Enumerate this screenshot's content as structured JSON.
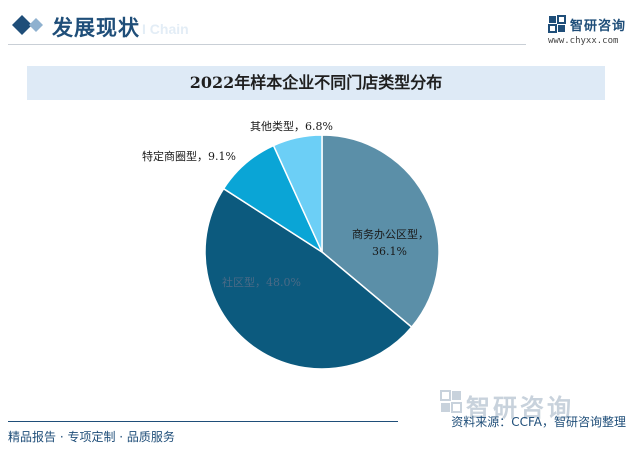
{
  "header": {
    "section_title": "发展现状",
    "watermark_text": "I Chain"
  },
  "logo": {
    "name": "智研咨询",
    "url": "www.chyxx.com"
  },
  "chart_data": {
    "type": "pie",
    "title": "2022年样本企业不同门店类型分布",
    "slices": [
      {
        "label": "商务办公区型",
        "value": 36.1,
        "value_text": "36.1%",
        "color": "#5b8fa8"
      },
      {
        "label": "社区型",
        "value": 48.0,
        "value_text": "48.0%",
        "color": "#0c5a7e"
      },
      {
        "label": "特定商圈型",
        "value": 9.1,
        "value_text": "9.1%",
        "color": "#0aa5d6"
      },
      {
        "label": "其他类型",
        "value": 6.8,
        "value_text": "6.8%",
        "color": "#6ccff6"
      }
    ],
    "start_angle": "12 o'clock",
    "direction": "clockwise"
  },
  "watermark": {
    "brand": "智研咨询"
  },
  "footer": {
    "left_text": "精品报告 · 专项定制 · 品质服务",
    "source_text": "资料来源：CCFA，智研咨询整理"
  }
}
